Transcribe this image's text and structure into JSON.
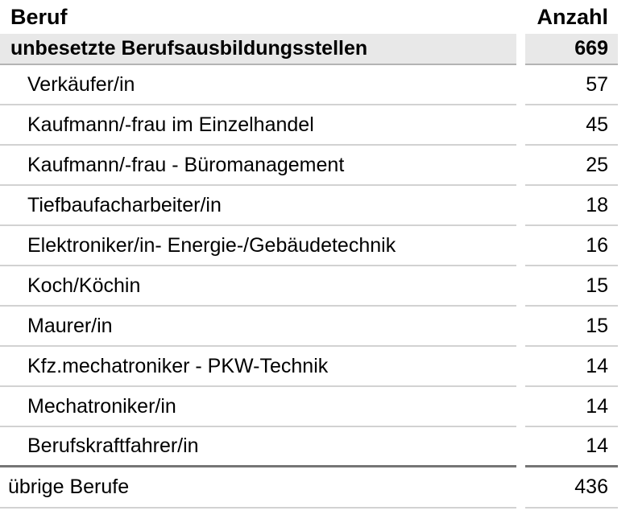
{
  "table": {
    "columns": {
      "beruf": "Beruf",
      "anzahl": "Anzahl"
    },
    "summary_row": {
      "beruf": "unbesetzte Berufsausbildungsstellen",
      "anzahl": "669"
    },
    "detail_rows": [
      {
        "beruf": "Verkäufer/in",
        "anzahl": "57"
      },
      {
        "beruf": "Kaufmann/-frau im Einzelhandel",
        "anzahl": "45"
      },
      {
        "beruf": "Kaufmann/-frau - Büromanagement",
        "anzahl": "25"
      },
      {
        "beruf": "Tiefbaufacharbeiter/in",
        "anzahl": "18"
      },
      {
        "beruf": "Elektroniker/in- Energie-/Gebäudetechnik",
        "anzahl": "16"
      },
      {
        "beruf": "Koch/Köchin",
        "anzahl": "15"
      },
      {
        "beruf": "Maurer/in",
        "anzahl": "15"
      },
      {
        "beruf": "Kfz.mechatroniker - PKW-Technik",
        "anzahl": "14"
      },
      {
        "beruf": "Mechatroniker/in",
        "anzahl": "14"
      },
      {
        "beruf": "Berufskraftfahrer/in",
        "anzahl": "14"
      }
    ],
    "footer_row": {
      "beruf": "übrige Berufe",
      "anzahl": "436"
    }
  },
  "colors": {
    "summary_bg": "#e8e8e8",
    "row_border": "#d2d2d2",
    "summary_border": "#b3b3b3",
    "footer_top_border": "#757575",
    "text": "#000000",
    "page_bg": "#ffffff"
  }
}
